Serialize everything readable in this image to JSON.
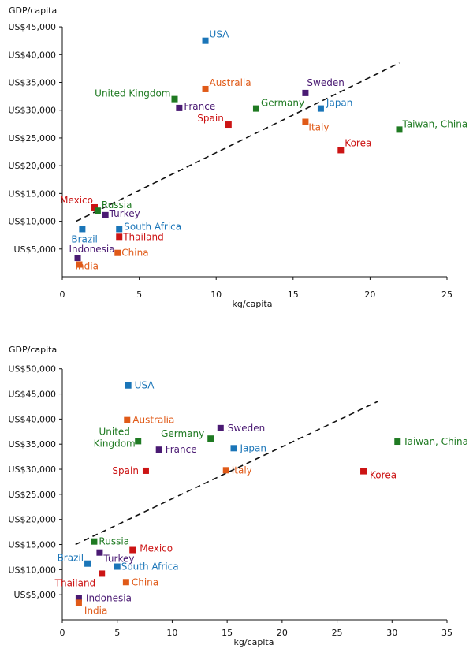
{
  "chart_data": [
    {
      "type": "scatter",
      "ylabel": "GDP/capita",
      "xlabel": "kg/capita",
      "xlim": [
        0,
        25
      ],
      "ylim": [
        0,
        47000
      ],
      "xticks": [
        "0",
        "5",
        "10",
        "15",
        "20",
        "25"
      ],
      "xtick_values": [
        0,
        5,
        10,
        15,
        20,
        25
      ],
      "yticks": [
        "US$5,000",
        "US$10,000",
        "US$15,000",
        "US$20,000",
        "US$25,000",
        "US$30,000",
        "US$35,000",
        "US$40,000",
        "US$45,000"
      ],
      "ytick_values": [
        5000,
        10000,
        15000,
        20000,
        25000,
        30000,
        35000,
        40000,
        45000
      ],
      "trendline": {
        "x": [
          0.9,
          21.9
        ],
        "y": [
          10000,
          38500
        ]
      },
      "points": [
        {
          "name": "USA",
          "x": 9.3,
          "y": 42500,
          "color": "#1a75b8"
        },
        {
          "name": "Australia",
          "x": 9.3,
          "y": 33800,
          "color": "#e05a18"
        },
        {
          "name": "United Kingdom",
          "x": 7.3,
          "y": 32000,
          "color": "#1f7a22"
        },
        {
          "name": "France",
          "x": 7.6,
          "y": 30400,
          "color": "#4a1a73"
        },
        {
          "name": "Germany",
          "x": 12.6,
          "y": 30300,
          "color": "#1f7a22"
        },
        {
          "name": "Sweden",
          "x": 15.8,
          "y": 33100,
          "color": "#4a1a73"
        },
        {
          "name": "Japan",
          "x": 16.8,
          "y": 30300,
          "color": "#1a75b8"
        },
        {
          "name": "Spain",
          "x": 10.8,
          "y": 27400,
          "color": "#cc1414"
        },
        {
          "name": "Italy",
          "x": 15.8,
          "y": 27900,
          "color": "#e05a18"
        },
        {
          "name": "Taiwan, China",
          "x": 21.9,
          "y": 26500,
          "color": "#1f7a22"
        },
        {
          "name": "Korea",
          "x": 18.1,
          "y": 22800,
          "color": "#cc1414"
        },
        {
          "name": "Mexico",
          "x": 2.1,
          "y": 12500,
          "color": "#cc1414"
        },
        {
          "name": "Russia",
          "x": 2.3,
          "y": 11900,
          "color": "#1f7a22"
        },
        {
          "name": "Turkey",
          "x": 2.8,
          "y": 11100,
          "color": "#4a1a73"
        },
        {
          "name": "Brazil",
          "x": 1.3,
          "y": 8600,
          "color": "#1a75b8"
        },
        {
          "name": "South Africa",
          "x": 3.7,
          "y": 8600,
          "color": "#1a75b8"
        },
        {
          "name": "Thailand",
          "x": 3.7,
          "y": 7200,
          "color": "#cc1414"
        },
        {
          "name": "Indonesia",
          "x": 1.0,
          "y": 3400,
          "color": "#4a1a73"
        },
        {
          "name": "China",
          "x": 3.6,
          "y": 4300,
          "color": "#e05a18"
        },
        {
          "name": "India",
          "x": 1.1,
          "y": 2200,
          "color": "#e05a18"
        }
      ]
    },
    {
      "type": "scatter",
      "ylabel": "GDP/capita",
      "xlabel": "kg/capita",
      "xlim": [
        0,
        35
      ],
      "ylim": [
        0,
        52000
      ],
      "xticks": [
        "0",
        "5",
        "10",
        "15",
        "20",
        "25",
        "30",
        "35"
      ],
      "xtick_values": [
        0,
        5,
        10,
        15,
        20,
        25,
        30,
        35
      ],
      "yticks": [
        "US$5,000",
        "US$10,000",
        "US$15,000",
        "US$20,000",
        "US$25,000",
        "US$30,000",
        "US$35,000",
        "US$40,000",
        "US$45,000",
        "US$50,000"
      ],
      "ytick_values": [
        5000,
        10000,
        15000,
        20000,
        25000,
        30000,
        35000,
        40000,
        45000,
        50000
      ],
      "trendline": {
        "x": [
          1.2,
          28.7
        ],
        "y": [
          15000,
          43500
        ]
      },
      "points": [
        {
          "name": "USA",
          "x": 6.0,
          "y": 46700,
          "color": "#1a75b8"
        },
        {
          "name": "Australia",
          "x": 5.9,
          "y": 39800,
          "color": "#e05a18"
        },
        {
          "name": "United Kingdom",
          "x": 6.9,
          "y": 35600,
          "color": "#1f7a22"
        },
        {
          "name": "France",
          "x": 8.8,
          "y": 33900,
          "color": "#4a1a73"
        },
        {
          "name": "Germany",
          "x": 13.5,
          "y": 36100,
          "color": "#1f7a22"
        },
        {
          "name": "Sweden",
          "x": 14.4,
          "y": 38200,
          "color": "#4a1a73"
        },
        {
          "name": "Japan",
          "x": 15.6,
          "y": 34200,
          "color": "#1a75b8"
        },
        {
          "name": "Spain",
          "x": 7.6,
          "y": 29700,
          "color": "#cc1414"
        },
        {
          "name": "Italy",
          "x": 14.9,
          "y": 29800,
          "color": "#e05a18"
        },
        {
          "name": "Taiwan, China",
          "x": 30.5,
          "y": 35500,
          "color": "#1f7a22"
        },
        {
          "name": "Korea",
          "x": 27.4,
          "y": 29600,
          "color": "#cc1414"
        },
        {
          "name": "Russia",
          "x": 2.9,
          "y": 15600,
          "color": "#1f7a22"
        },
        {
          "name": "Mexico",
          "x": 6.4,
          "y": 13900,
          "color": "#cc1414"
        },
        {
          "name": "Turkey",
          "x": 3.4,
          "y": 13400,
          "color": "#4a1a73"
        },
        {
          "name": "Brazil",
          "x": 2.3,
          "y": 11200,
          "color": "#1a75b8"
        },
        {
          "name": "South Africa",
          "x": 5.0,
          "y": 10600,
          "color": "#1a75b8"
        },
        {
          "name": "Thailand",
          "x": 3.6,
          "y": 9200,
          "color": "#cc1414"
        },
        {
          "name": "China",
          "x": 5.8,
          "y": 7500,
          "color": "#e05a18"
        },
        {
          "name": "Indonesia",
          "x": 1.5,
          "y": 4300,
          "color": "#4a1a73"
        },
        {
          "name": "India",
          "x": 1.5,
          "y": 3400,
          "color": "#e05a18"
        }
      ]
    }
  ]
}
